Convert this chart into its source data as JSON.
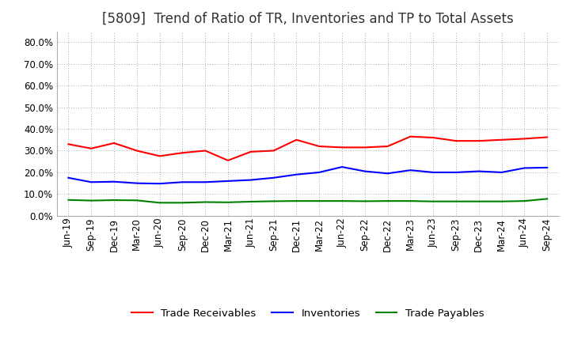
{
  "title": "[5809]  Trend of Ratio of TR, Inventories and TP to Total Assets",
  "x_labels": [
    "Jun-19",
    "Sep-19",
    "Dec-19",
    "Mar-20",
    "Jun-20",
    "Sep-20",
    "Dec-20",
    "Mar-21",
    "Jun-21",
    "Sep-21",
    "Dec-21",
    "Mar-22",
    "Jun-22",
    "Sep-22",
    "Dec-22",
    "Mar-23",
    "Jun-23",
    "Sep-23",
    "Dec-23",
    "Mar-24",
    "Jun-24",
    "Sep-24"
  ],
  "trade_receivables": [
    0.33,
    0.31,
    0.335,
    0.3,
    0.275,
    0.29,
    0.3,
    0.255,
    0.295,
    0.3,
    0.35,
    0.32,
    0.315,
    0.315,
    0.32,
    0.365,
    0.36,
    0.345,
    0.345,
    0.35,
    0.355,
    0.362
  ],
  "inventories": [
    0.175,
    0.155,
    0.157,
    0.15,
    0.148,
    0.155,
    0.155,
    0.16,
    0.165,
    0.175,
    0.19,
    0.2,
    0.225,
    0.205,
    0.195,
    0.21,
    0.2,
    0.2,
    0.205,
    0.2,
    0.22,
    0.222
  ],
  "trade_payables": [
    0.073,
    0.07,
    0.072,
    0.071,
    0.06,
    0.06,
    0.063,
    0.062,
    0.065,
    0.067,
    0.068,
    0.068,
    0.068,
    0.067,
    0.068,
    0.068,
    0.066,
    0.066,
    0.066,
    0.066,
    0.068,
    0.078
  ],
  "tr_color": "#FF0000",
  "inv_color": "#0000FF",
  "tp_color": "#008000",
  "background_color": "#FFFFFF",
  "grid_color": "#AAAAAA",
  "ylim": [
    0.0,
    0.85
  ],
  "yticks": [
    0.0,
    0.1,
    0.2,
    0.3,
    0.4,
    0.5,
    0.6,
    0.7,
    0.8
  ],
  "legend_labels": [
    "Trade Receivables",
    "Inventories",
    "Trade Payables"
  ],
  "title_fontsize": 12,
  "tick_fontsize": 8.5,
  "legend_fontsize": 9.5
}
